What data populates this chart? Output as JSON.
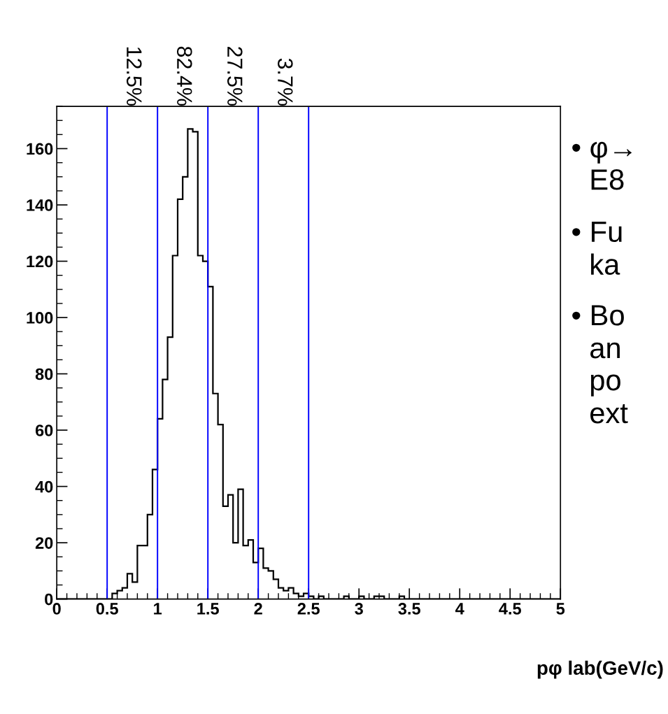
{
  "chart_data": {
    "type": "histogram",
    "bins": [
      0,
      0.05,
      0.1,
      0.15,
      0.2,
      0.25,
      0.3,
      0.35,
      0.4,
      0.45,
      0.5,
      0.55,
      0.6,
      0.65,
      0.7,
      0.75,
      0.8,
      0.85,
      0.9,
      0.95,
      1,
      1.05,
      1.1,
      1.15,
      1.2,
      1.25,
      1.3,
      1.35,
      1.4,
      1.45,
      1.5,
      1.55,
      1.6,
      1.65,
      1.7,
      1.75,
      1.8,
      1.85,
      1.9,
      1.95,
      2,
      2.05,
      2.1,
      2.15,
      2.2,
      2.25,
      2.3,
      2.35,
      2.4,
      2.45,
      2.5,
      2.55,
      2.6,
      2.65,
      2.7,
      2.75,
      2.8,
      2.85,
      2.9,
      2.95,
      3,
      3.05,
      3.1,
      3.15,
      3.2,
      3.25,
      3.3,
      3.35,
      3.4,
      3.45,
      3.5,
      3.55,
      3.6,
      3.65,
      3.7,
      3.75,
      3.8,
      3.85,
      3.9,
      3.95,
      4,
      4.05,
      4.1,
      4.15,
      4.2,
      4.25,
      4.3,
      4.35,
      4.4,
      4.45,
      4.5,
      4.55,
      4.6,
      4.65,
      4.7,
      4.75,
      4.8,
      4.85,
      4.9,
      4.95,
      5
    ],
    "values": [
      0,
      0,
      0,
      0,
      0,
      0,
      0,
      0,
      0,
      0,
      0,
      2,
      3,
      4,
      9,
      6,
      19,
      19,
      30,
      46,
      64,
      78,
      93,
      122,
      142,
      150,
      167,
      166,
      122,
      120,
      111,
      73,
      62,
      33,
      37,
      20,
      39,
      19,
      21,
      13,
      18,
      11,
      10,
      7,
      4,
      3,
      4,
      2,
      1,
      2,
      1,
      0,
      1,
      0,
      0,
      0,
      0,
      1,
      0,
      0,
      1,
      0,
      0,
      1,
      1,
      0,
      0,
      0,
      1,
      0,
      0,
      0,
      0,
      0,
      0,
      0,
      0,
      0,
      0,
      0,
      0,
      0,
      0,
      0,
      0,
      0,
      0,
      0,
      0,
      0,
      0,
      0,
      0,
      0,
      0,
      0,
      0,
      0,
      0,
      0
    ],
    "color": "#000000",
    "xlabel": "pφ lab(GeV/c)",
    "xlim": [
      0,
      5
    ],
    "xticks": [
      0,
      {
        "value": 0.5,
        "label": "0.5"
      },
      1,
      {
        "value": 1.5,
        "label": "1.5"
      },
      2,
      {
        "value": 2.5,
        "label": "2.5"
      },
      3,
      {
        "value": 3.5,
        "label": "3.5"
      },
      4,
      {
        "value": 4.5,
        "label": "4.5"
      },
      5
    ],
    "ylim": [
      0,
      175
    ],
    "yticks": [
      0,
      20,
      40,
      60,
      80,
      100,
      120,
      140,
      160
    ],
    "grid": false,
    "ref_lines": [
      {
        "axis": "x",
        "value": 0.5,
        "color": "#0000ff"
      },
      {
        "axis": "x",
        "value": 1.0,
        "color": "#0000ff"
      },
      {
        "axis": "x",
        "value": 1.5,
        "color": "#0000ff"
      },
      {
        "axis": "x",
        "value": 2.0,
        "color": "#0000ff"
      },
      {
        "axis": "x",
        "value": 2.5,
        "color": "#0000ff"
      }
    ],
    "annotations": [
      "12.5%",
      "82.4%",
      "27.5%",
      "3.7%",
      "• φ→",
      "E8",
      "• Fu",
      "ka",
      "• Bo",
      "an",
      "po",
      "ext"
    ]
  }
}
